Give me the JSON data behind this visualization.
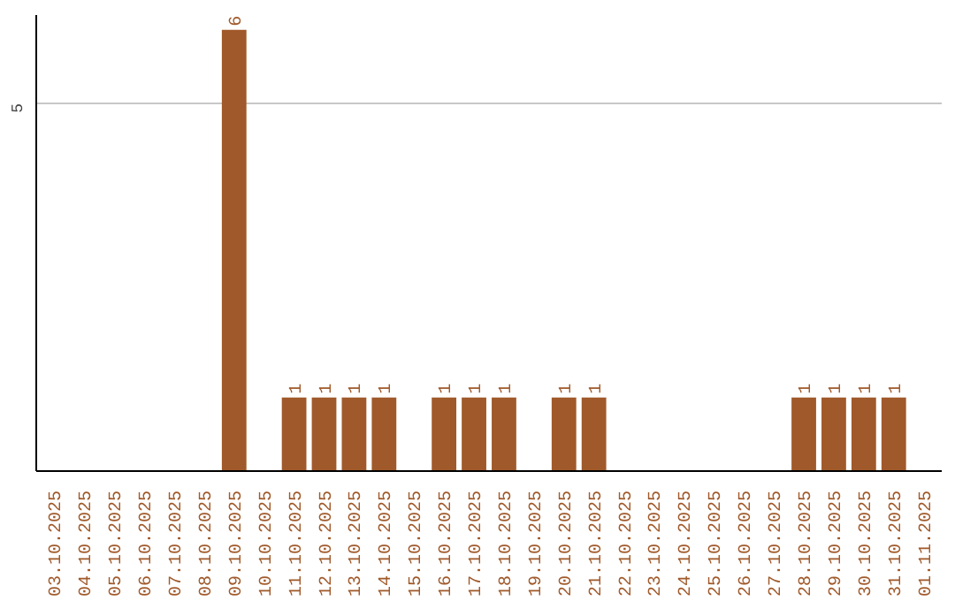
{
  "chart_data": {
    "type": "bar",
    "categories": [
      "03.10.2025",
      "04.10.2025",
      "05.10.2025",
      "06.10.2025",
      "07.10.2025",
      "08.10.2025",
      "09.10.2025",
      "10.10.2025",
      "11.10.2025",
      "12.10.2025",
      "13.10.2025",
      "14.10.2025",
      "15.10.2025",
      "16.10.2025",
      "17.10.2025",
      "18.10.2025",
      "19.10.2025",
      "20.10.2025",
      "21.10.2025",
      "22.10.2025",
      "23.10.2025",
      "24.10.2025",
      "25.10.2025",
      "26.10.2025",
      "27.10.2025",
      "28.10.2025",
      "29.10.2025",
      "30.10.2025",
      "31.10.2025",
      "01.11.2025"
    ],
    "values": [
      0,
      0,
      0,
      0,
      0,
      0,
      6,
      0,
      1,
      1,
      1,
      1,
      0,
      1,
      1,
      1,
      0,
      1,
      1,
      0,
      0,
      0,
      0,
      0,
      0,
      1,
      1,
      1,
      1,
      0
    ],
    "value_labels": [
      null,
      null,
      null,
      null,
      null,
      null,
      "6",
      null,
      "1",
      "1",
      "1",
      "1",
      null,
      "1",
      "1",
      "1",
      null,
      "1",
      "1",
      null,
      null,
      null,
      null,
      null,
      null,
      "1",
      "1",
      "1",
      "1",
      null
    ],
    "color": "#a0592a",
    "ylim": [
      0,
      6.2
    ],
    "yticks": [
      5
    ],
    "grid": "y"
  }
}
